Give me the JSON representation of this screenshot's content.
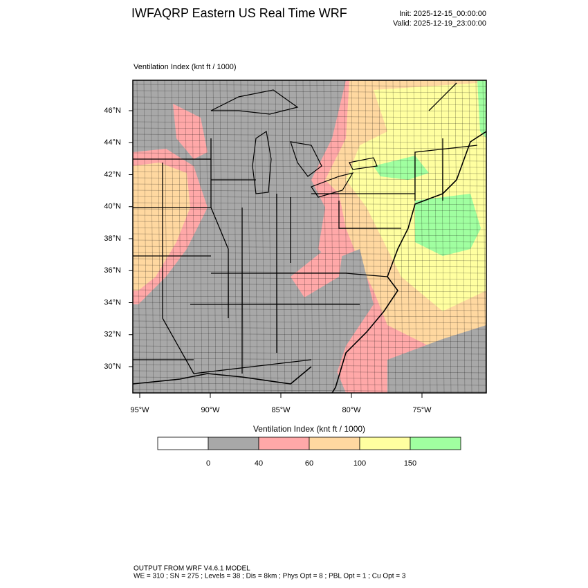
{
  "header": {
    "title": "IWFAQRP Eastern US Real Time WRF",
    "init": "Init: 2025-12-15_00:00:00",
    "valid": "Valid: 2025-12-19_23:00:00"
  },
  "map": {
    "label": "Ventilation Index   (knt ft / 1000)",
    "lat_labels": [
      "46°N",
      "44°N",
      "42°N",
      "40°N",
      "38°N",
      "36°N",
      "34°N",
      "32°N",
      "30°N"
    ],
    "lon_labels": [
      "95°W",
      "90°W",
      "85°W",
      "80°W",
      "75°W"
    ]
  },
  "legend": {
    "title": "Ventilation Index  (knt ft / 1000)",
    "colors": [
      "#ffffff",
      "#a8a8a8",
      "#ffa8a8",
      "#ffd8a0",
      "#ffffa0",
      "#a0ffa0"
    ],
    "labels": [
      "0",
      "40",
      "60",
      "100",
      "150"
    ]
  },
  "footer": {
    "lines": [
      "OUTPUT FROM WRF V4.6.1 MODEL",
      "WE = 310 ; SN = 275 ; Levels = 38 ; Dis = 8km ; Phys Opt = 8 ; PBL Opt = 1 ; Cu Opt = 3"
    ]
  }
}
